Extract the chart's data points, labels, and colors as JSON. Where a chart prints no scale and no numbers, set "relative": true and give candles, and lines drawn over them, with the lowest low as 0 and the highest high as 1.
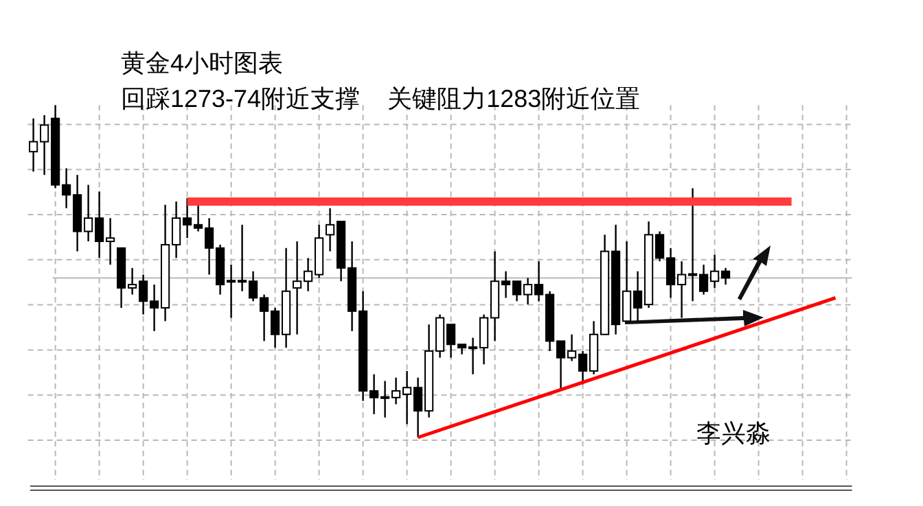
{
  "chart_data": {
    "type": "candlestick",
    "title": "黄金4小时图表",
    "subtitle": "回踩1273-74附近支撑    关键阻力1283附近位置",
    "relative": true,
    "grid": true,
    "categories": [
      null,
      null,
      null,
      null,
      null,
      null,
      null,
      null,
      null,
      null,
      null,
      null,
      null,
      null,
      null,
      null,
      null,
      null,
      null,
      null,
      null,
      null,
      null,
      null,
      null,
      null,
      null,
      null,
      null,
      null,
      null,
      null,
      null,
      null,
      null,
      null,
      null,
      null,
      null,
      null,
      null,
      null,
      null,
      null,
      null,
      null,
      null,
      null,
      null,
      null,
      null,
      null,
      null,
      null,
      null,
      null,
      null,
      null,
      null,
      null,
      null,
      null,
      null,
      null,
      null,
      null,
      null,
      null,
      null,
      null,
      null,
      null,
      null,
      null,
      null
    ],
    "ohlc": [
      [
        0.86,
        0.96,
        0.8,
        0.89
      ],
      [
        0.89,
        0.97,
        0.79,
        0.94
      ],
      [
        0.96,
        1.0,
        0.75,
        0.76
      ],
      [
        0.76,
        0.81,
        0.69,
        0.73
      ],
      [
        0.73,
        0.79,
        0.56,
        0.62
      ],
      [
        0.62,
        0.76,
        0.59,
        0.66
      ],
      [
        0.66,
        0.74,
        0.54,
        0.59
      ],
      [
        0.59,
        0.66,
        0.52,
        0.6
      ],
      [
        0.57,
        0.57,
        0.39,
        0.45
      ],
      [
        0.45,
        0.51,
        0.43,
        0.46
      ],
      [
        0.47,
        0.49,
        0.37,
        0.41
      ],
      [
        0.41,
        0.46,
        0.32,
        0.39
      ],
      [
        0.39,
        0.7,
        0.35,
        0.58
      ],
      [
        0.58,
        0.71,
        0.54,
        0.66
      ],
      [
        0.66,
        0.72,
        0.6,
        0.64
      ],
      [
        0.64,
        0.7,
        0.62,
        0.63
      ],
      [
        0.63,
        0.66,
        0.49,
        0.57
      ],
      [
        0.57,
        0.58,
        0.43,
        0.46
      ],
      [
        0.47,
        0.52,
        0.36,
        0.47
      ],
      [
        0.47,
        0.64,
        0.44,
        0.47
      ],
      [
        0.47,
        0.5,
        0.41,
        0.42
      ],
      [
        0.42,
        0.43,
        0.29,
        0.38
      ],
      [
        0.38,
        0.39,
        0.27,
        0.31
      ],
      [
        0.31,
        0.57,
        0.27,
        0.44
      ],
      [
        0.45,
        0.59,
        0.31,
        0.47
      ],
      [
        0.47,
        0.54,
        0.44,
        0.5
      ],
      [
        0.49,
        0.64,
        0.48,
        0.6
      ],
      [
        0.61,
        0.69,
        0.56,
        0.64
      ],
      [
        0.65,
        0.65,
        0.47,
        0.51
      ],
      [
        0.51,
        0.59,
        0.32,
        0.38
      ],
      [
        0.38,
        0.44,
        0.11,
        0.14
      ],
      [
        0.14,
        0.19,
        0.07,
        0.12
      ],
      [
        0.12,
        0.17,
        0.06,
        0.12
      ],
      [
        0.12,
        0.18,
        0.1,
        0.14
      ],
      [
        0.13,
        0.2,
        0.04,
        0.15
      ],
      [
        0.15,
        0.18,
        0.0,
        0.08
      ],
      [
        0.08,
        0.34,
        0.06,
        0.26
      ],
      [
        0.26,
        0.37,
        0.24,
        0.36
      ],
      [
        0.34,
        0.34,
        0.24,
        0.28
      ],
      [
        0.28,
        0.28,
        0.25,
        0.27
      ],
      [
        0.27,
        0.3,
        0.19,
        0.27
      ],
      [
        0.27,
        0.37,
        0.22,
        0.36
      ],
      [
        0.36,
        0.56,
        0.29,
        0.47
      ],
      [
        0.47,
        0.5,
        0.42,
        0.46
      ],
      [
        0.47,
        0.47,
        0.41,
        0.43
      ],
      [
        0.43,
        0.48,
        0.4,
        0.46
      ],
      [
        0.46,
        0.53,
        0.41,
        0.43
      ],
      [
        0.43,
        0.44,
        0.26,
        0.29
      ],
      [
        0.29,
        0.29,
        0.14,
        0.24
      ],
      [
        0.24,
        0.31,
        0.23,
        0.26
      ],
      [
        0.25,
        0.26,
        0.16,
        0.2
      ],
      [
        0.2,
        0.35,
        0.19,
        0.31
      ],
      [
        0.31,
        0.61,
        0.31,
        0.56
      ],
      [
        0.56,
        0.64,
        0.31,
        0.34
      ],
      [
        0.35,
        0.59,
        0.35,
        0.44
      ],
      [
        0.44,
        0.5,
        0.35,
        0.39
      ],
      [
        0.4,
        0.65,
        0.39,
        0.61
      ],
      [
        0.61,
        0.62,
        0.53,
        0.54
      ],
      [
        0.54,
        0.57,
        0.42,
        0.46
      ],
      [
        0.46,
        0.53,
        0.36,
        0.49
      ],
      [
        0.49,
        0.75,
        0.41,
        0.49
      ],
      [
        0.49,
        0.52,
        0.43,
        0.44
      ],
      [
        0.47,
        0.55,
        0.45,
        0.5
      ],
      [
        0.5,
        0.51,
        0.46,
        0.48
      ],
      null,
      null,
      null,
      null,
      null,
      null,
      null,
      null,
      null,
      null,
      null
    ],
    "series": [
      {
        "type": "line",
        "values": [
          null,
          null,
          null,
          null,
          null,
          null,
          null,
          null,
          null,
          null,
          null,
          null,
          null,
          null,
          0.71,
          null,
          null,
          null,
          null,
          null,
          null,
          null,
          null,
          null,
          null,
          null,
          null,
          null,
          null,
          null,
          null,
          null,
          null,
          null,
          null,
          null,
          null,
          null,
          null,
          null,
          null,
          null,
          null,
          null,
          null,
          null,
          null,
          null,
          null,
          null,
          null,
          null,
          null,
          null,
          null,
          null,
          null,
          null,
          null,
          null,
          null,
          null,
          null,
          null,
          null,
          null,
          null,
          null,
          null,
          0.71,
          null,
          null,
          null,
          null,
          null
        ],
        "color": "#ff3b3b"
      },
      {
        "type": "line",
        "values": [
          null,
          null,
          null,
          null,
          null,
          null,
          null,
          null,
          null,
          null,
          null,
          null,
          null,
          null,
          null,
          null,
          null,
          null,
          null,
          null,
          null,
          null,
          null,
          null,
          null,
          null,
          null,
          null,
          null,
          null,
          null,
          null,
          null,
          null,
          null,
          0.0,
          null,
          null,
          null,
          null,
          null,
          null,
          null,
          null,
          null,
          null,
          null,
          null,
          null,
          null,
          null,
          null,
          null,
          null,
          null,
          null,
          null,
          null,
          null,
          null,
          null,
          null,
          null,
          null,
          null,
          null,
          null,
          null,
          null,
          null,
          null,
          null,
          null,
          0.42,
          null
        ],
        "color": "#ff0000"
      }
    ],
    "ref_lines": [
      {
        "axis": "y",
        "value": 0.48,
        "color": "#c0c0c0"
      }
    ],
    "annotations": [
      "李兴淼"
    ]
  }
}
